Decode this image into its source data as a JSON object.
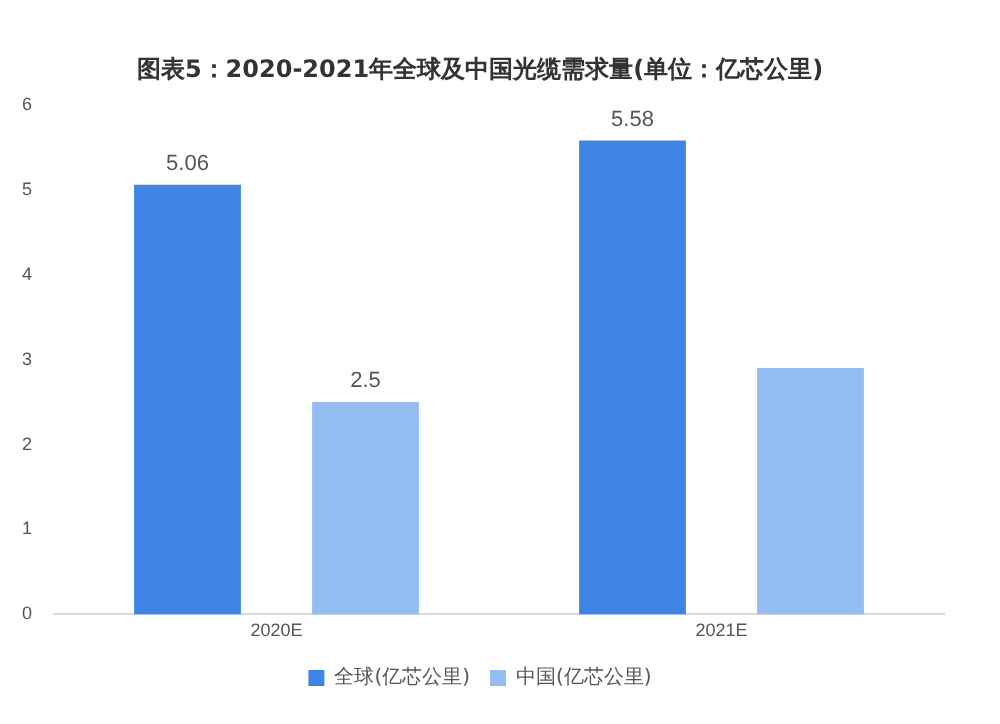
{
  "chart_data": {
    "type": "bar",
    "title": "图表5：2020-2021年全球及中国光缆需求量(单位：亿芯公里)",
    "categories": [
      "2020E",
      "2021E"
    ],
    "series": [
      {
        "name": "全球(亿芯公里)",
        "color": "#3f84e5",
        "values": [
          5.06,
          5.58
        ],
        "value_labels": [
          "5.06",
          "5.58"
        ]
      },
      {
        "name": "中国(亿芯公里)",
        "color": "#94bdf2",
        "values": [
          2.5,
          2.9
        ],
        "value_labels": [
          "2.5",
          null
        ]
      }
    ],
    "ylim": [
      0,
      6
    ],
    "yticks": [
      0,
      1,
      2,
      3,
      4,
      5,
      6
    ],
    "grid": false,
    "legend": "bottom"
  }
}
